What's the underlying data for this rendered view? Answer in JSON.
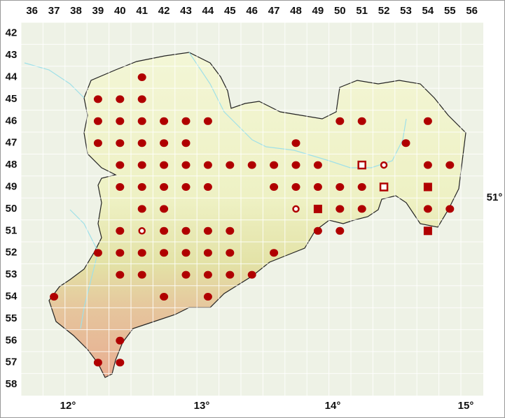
{
  "map": {
    "columns": [
      36,
      37,
      38,
      39,
      40,
      41,
      42,
      43,
      44,
      45,
      46,
      47,
      48,
      49,
      50,
      51,
      52,
      53,
      54,
      55,
      56
    ],
    "rows": [
      42,
      43,
      44,
      45,
      46,
      47,
      48,
      49,
      50,
      51,
      52,
      53,
      54,
      55,
      56,
      57,
      58
    ],
    "longitude_labels": [
      "12°",
      "13°",
      "14°",
      "15°"
    ],
    "latitude_labels": [
      "51°"
    ],
    "records": [
      {
        "col": 41,
        "row": 44,
        "symbol": "dot"
      },
      {
        "col": 39,
        "row": 45,
        "symbol": "dot"
      },
      {
        "col": 40,
        "row": 45,
        "symbol": "dot"
      },
      {
        "col": 41,
        "row": 45,
        "symbol": "dot"
      },
      {
        "col": 39,
        "row": 46,
        "symbol": "dot"
      },
      {
        "col": 40,
        "row": 46,
        "symbol": "dot"
      },
      {
        "col": 41,
        "row": 46,
        "symbol": "dot"
      },
      {
        "col": 42,
        "row": 46,
        "symbol": "dot"
      },
      {
        "col": 43,
        "row": 46,
        "symbol": "dot"
      },
      {
        "col": 44,
        "row": 46,
        "symbol": "dot"
      },
      {
        "col": 50,
        "row": 46,
        "symbol": "dot"
      },
      {
        "col": 51,
        "row": 46,
        "symbol": "dot"
      },
      {
        "col": 54,
        "row": 46,
        "symbol": "dot"
      },
      {
        "col": 39,
        "row": 47,
        "symbol": "dot"
      },
      {
        "col": 40,
        "row": 47,
        "symbol": "dot"
      },
      {
        "col": 41,
        "row": 47,
        "symbol": "dot"
      },
      {
        "col": 42,
        "row": 47,
        "symbol": "dot"
      },
      {
        "col": 43,
        "row": 47,
        "symbol": "dot"
      },
      {
        "col": 48,
        "row": 47,
        "symbol": "dot"
      },
      {
        "col": 53,
        "row": 47,
        "symbol": "dot"
      },
      {
        "col": 40,
        "row": 48,
        "symbol": "dot"
      },
      {
        "col": 41,
        "row": 48,
        "symbol": "dot"
      },
      {
        "col": 42,
        "row": 48,
        "symbol": "dot"
      },
      {
        "col": 43,
        "row": 48,
        "symbol": "dot"
      },
      {
        "col": 44,
        "row": 48,
        "symbol": "dot"
      },
      {
        "col": 45,
        "row": 48,
        "symbol": "dot"
      },
      {
        "col": 46,
        "row": 48,
        "symbol": "dot"
      },
      {
        "col": 47,
        "row": 48,
        "symbol": "dot"
      },
      {
        "col": 48,
        "row": 48,
        "symbol": "dot"
      },
      {
        "col": 49,
        "row": 48,
        "symbol": "dot"
      },
      {
        "col": 51,
        "row": 48,
        "symbol": "open-square"
      },
      {
        "col": 52,
        "row": 48,
        "symbol": "open-circle"
      },
      {
        "col": 54,
        "row": 48,
        "symbol": "dot"
      },
      {
        "col": 55,
        "row": 48,
        "symbol": "dot"
      },
      {
        "col": 40,
        "row": 49,
        "symbol": "dot"
      },
      {
        "col": 41,
        "row": 49,
        "symbol": "dot"
      },
      {
        "col": 42,
        "row": 49,
        "symbol": "dot"
      },
      {
        "col": 43,
        "row": 49,
        "symbol": "dot"
      },
      {
        "col": 44,
        "row": 49,
        "symbol": "dot"
      },
      {
        "col": 47,
        "row": 49,
        "symbol": "dot"
      },
      {
        "col": 48,
        "row": 49,
        "symbol": "dot"
      },
      {
        "col": 49,
        "row": 49,
        "symbol": "dot"
      },
      {
        "col": 50,
        "row": 49,
        "symbol": "dot"
      },
      {
        "col": 51,
        "row": 49,
        "symbol": "dot"
      },
      {
        "col": 52,
        "row": 49,
        "symbol": "open-square"
      },
      {
        "col": 54,
        "row": 49,
        "symbol": "square"
      },
      {
        "col": 41,
        "row": 50,
        "symbol": "dot"
      },
      {
        "col": 42,
        "row": 50,
        "symbol": "dot"
      },
      {
        "col": 48,
        "row": 50,
        "symbol": "open-circle"
      },
      {
        "col": 49,
        "row": 50,
        "symbol": "square"
      },
      {
        "col": 50,
        "row": 50,
        "symbol": "dot"
      },
      {
        "col": 51,
        "row": 50,
        "symbol": "dot"
      },
      {
        "col": 54,
        "row": 50,
        "symbol": "dot"
      },
      {
        "col": 55,
        "row": 50,
        "symbol": "dot"
      },
      {
        "col": 40,
        "row": 51,
        "symbol": "dot"
      },
      {
        "col": 41,
        "row": 51,
        "symbol": "open-circle"
      },
      {
        "col": 42,
        "row": 51,
        "symbol": "dot"
      },
      {
        "col": 43,
        "row": 51,
        "symbol": "dot"
      },
      {
        "col": 44,
        "row": 51,
        "symbol": "dot"
      },
      {
        "col": 45,
        "row": 51,
        "symbol": "dot"
      },
      {
        "col": 49,
        "row": 51,
        "symbol": "dot"
      },
      {
        "col": 50,
        "row": 51,
        "symbol": "dot"
      },
      {
        "col": 54,
        "row": 51,
        "symbol": "square"
      },
      {
        "col": 39,
        "row": 52,
        "symbol": "dot"
      },
      {
        "col": 40,
        "row": 52,
        "symbol": "dot"
      },
      {
        "col": 41,
        "row": 52,
        "symbol": "dot"
      },
      {
        "col": 42,
        "row": 52,
        "symbol": "dot"
      },
      {
        "col": 43,
        "row": 52,
        "symbol": "dot"
      },
      {
        "col": 44,
        "row": 52,
        "symbol": "dot"
      },
      {
        "col": 45,
        "row": 52,
        "symbol": "dot"
      },
      {
        "col": 47,
        "row": 52,
        "symbol": "dot"
      },
      {
        "col": 40,
        "row": 53,
        "symbol": "dot"
      },
      {
        "col": 41,
        "row": 53,
        "symbol": "dot"
      },
      {
        "col": 43,
        "row": 53,
        "symbol": "dot"
      },
      {
        "col": 44,
        "row": 53,
        "symbol": "dot"
      },
      {
        "col": 45,
        "row": 53,
        "symbol": "dot"
      },
      {
        "col": 46,
        "row": 53,
        "symbol": "dot"
      },
      {
        "col": 37,
        "row": 54,
        "symbol": "dot"
      },
      {
        "col": 42,
        "row": 54,
        "symbol": "dot"
      },
      {
        "col": 44,
        "row": 54,
        "symbol": "dot"
      },
      {
        "col": 40,
        "row": 56,
        "symbol": "dot"
      },
      {
        "col": 39,
        "row": 57,
        "symbol": "dot"
      },
      {
        "col": 40,
        "row": 57,
        "symbol": "dot"
      }
    ]
  }
}
